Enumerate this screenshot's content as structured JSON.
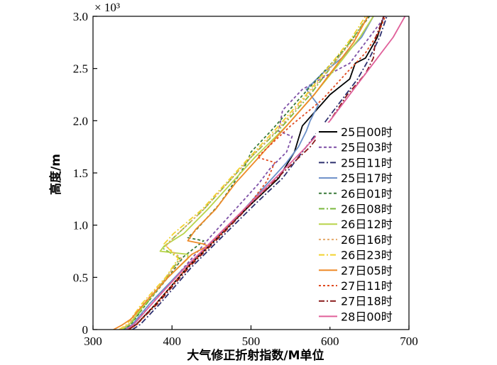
{
  "chart_data": {
    "type": "line",
    "title": "",
    "xlabel": "大气修正折射指数/M单位",
    "ylabel": "高度/m",
    "y_scale_label": "× 10³",
    "xlim": [
      300,
      700
    ],
    "ylim": [
      0,
      3000
    ],
    "xticks": [
      300,
      400,
      500,
      600,
      700
    ],
    "xtick_labels": [
      "300",
      "400",
      "500",
      "600",
      "700"
    ],
    "yticks": [
      0,
      500,
      1000,
      1500,
      2000,
      2500,
      3000
    ],
    "ytick_labels": [
      "0",
      "0.5",
      "1.0",
      "1.5",
      "2.0",
      "2.5",
      "3.0"
    ],
    "legend_position": "right",
    "grid": false,
    "series": [
      {
        "name": "25日00时",
        "color": "#000000",
        "dash": "solid",
        "points": [
          [
            345,
            0
          ],
          [
            355,
            50
          ],
          [
            380,
            250
          ],
          [
            420,
            600
          ],
          [
            460,
            900
          ],
          [
            500,
            1200
          ],
          [
            535,
            1450
          ],
          [
            555,
            1700
          ],
          [
            565,
            1950
          ],
          [
            600,
            2250
          ],
          [
            625,
            2400
          ],
          [
            632,
            2550
          ],
          [
            645,
            2600
          ],
          [
            660,
            2800
          ],
          [
            668,
            3000
          ]
        ]
      },
      {
        "name": "25日03时",
        "color": "#7d4fa6",
        "dash": "4,3",
        "points": [
          [
            343,
            0
          ],
          [
            352,
            60
          ],
          [
            375,
            250
          ],
          [
            410,
            550
          ],
          [
            450,
            900
          ],
          [
            480,
            1150
          ],
          [
            510,
            1400
          ],
          [
            525,
            1550
          ],
          [
            545,
            1700
          ],
          [
            552,
            1850
          ],
          [
            535,
            1900
          ],
          [
            540,
            2100
          ],
          [
            565,
            2300
          ],
          [
            600,
            2450
          ],
          [
            625,
            2550
          ],
          [
            640,
            2700
          ],
          [
            660,
            2900
          ],
          [
            670,
            3000
          ]
        ]
      },
      {
        "name": "25日11时",
        "color": "#2c2f6e",
        "dash": "8,3,2,3",
        "points": [
          [
            350,
            0
          ],
          [
            360,
            50
          ],
          [
            385,
            250
          ],
          [
            425,
            600
          ],
          [
            465,
            900
          ],
          [
            505,
            1200
          ],
          [
            540,
            1450
          ],
          [
            565,
            1700
          ],
          [
            590,
            1950
          ],
          [
            615,
            2200
          ],
          [
            635,
            2400
          ],
          [
            650,
            2600
          ],
          [
            663,
            2800
          ],
          [
            672,
            3000
          ]
        ]
      },
      {
        "name": "25日17时",
        "color": "#6b8fc8",
        "dash": "solid",
        "points": [
          [
            340,
            0
          ],
          [
            350,
            50
          ],
          [
            372,
            250
          ],
          [
            410,
            550
          ],
          [
            445,
            800
          ],
          [
            485,
            1100
          ],
          [
            515,
            1350
          ],
          [
            545,
            1600
          ],
          [
            560,
            1750
          ],
          [
            570,
            1900
          ],
          [
            575,
            2000
          ],
          [
            585,
            2150
          ],
          [
            570,
            2300
          ],
          [
            590,
            2450
          ],
          [
            615,
            2600
          ],
          [
            640,
            2800
          ],
          [
            655,
            3000
          ]
        ]
      },
      {
        "name": "26日01时",
        "color": "#3a7a3a",
        "dash": "4,3",
        "points": [
          [
            338,
            0
          ],
          [
            348,
            50
          ],
          [
            368,
            250
          ],
          [
            395,
            500
          ],
          [
            415,
            700
          ],
          [
            440,
            850
          ],
          [
            420,
            880
          ],
          [
            430,
            950
          ],
          [
            460,
            1200
          ],
          [
            478,
            1400
          ],
          [
            495,
            1600
          ],
          [
            500,
            1700
          ],
          [
            525,
            1900
          ],
          [
            560,
            2200
          ],
          [
            590,
            2450
          ],
          [
            620,
            2700
          ],
          [
            650,
            3000
          ]
        ]
      },
      {
        "name": "26日08时",
        "color": "#7ab83c",
        "dash": "8,3,2,3",
        "points": [
          [
            337,
            0
          ],
          [
            347,
            50
          ],
          [
            368,
            250
          ],
          [
            393,
            500
          ],
          [
            410,
            680
          ],
          [
            388,
            780
          ],
          [
            405,
            900
          ],
          [
            440,
            1150
          ],
          [
            470,
            1400
          ],
          [
            500,
            1650
          ],
          [
            540,
            1950
          ],
          [
            575,
            2250
          ],
          [
            605,
            2550
          ],
          [
            630,
            2800
          ],
          [
            648,
            3000
          ]
        ]
      },
      {
        "name": "26日12时",
        "color": "#b8d44a",
        "dash": "solid",
        "points": [
          [
            336,
            0
          ],
          [
            346,
            50
          ],
          [
            366,
            250
          ],
          [
            395,
            500
          ],
          [
            420,
            680
          ],
          [
            420,
            720
          ],
          [
            385,
            750
          ],
          [
            390,
            800
          ],
          [
            415,
            920
          ],
          [
            445,
            1150
          ],
          [
            475,
            1400
          ],
          [
            505,
            1650
          ],
          [
            545,
            1950
          ],
          [
            580,
            2250
          ],
          [
            612,
            2550
          ],
          [
            638,
            2800
          ],
          [
            655,
            3000
          ]
        ]
      },
      {
        "name": "26日16时",
        "color": "#e4a96a",
        "dash": "3,3",
        "points": [
          [
            335,
            0
          ],
          [
            345,
            50
          ],
          [
            364,
            250
          ],
          [
            393,
            500
          ],
          [
            412,
            680
          ],
          [
            392,
            800
          ],
          [
            405,
            900
          ],
          [
            440,
            1150
          ],
          [
            470,
            1400
          ],
          [
            500,
            1650
          ],
          [
            538,
            1950
          ],
          [
            572,
            2250
          ],
          [
            605,
            2550
          ],
          [
            632,
            2800
          ],
          [
            648,
            3000
          ]
        ]
      },
      {
        "name": "26日23时",
        "color": "#f2d22e",
        "dash": "8,3,2,3",
        "points": [
          [
            333,
            0
          ],
          [
            343,
            50
          ],
          [
            362,
            250
          ],
          [
            392,
            500
          ],
          [
            408,
            680
          ],
          [
            390,
            820
          ],
          [
            402,
            920
          ],
          [
            438,
            1150
          ],
          [
            468,
            1400
          ],
          [
            498,
            1650
          ],
          [
            535,
            1950
          ],
          [
            570,
            2250
          ],
          [
            602,
            2550
          ],
          [
            628,
            2800
          ],
          [
            645,
            3000
          ]
        ]
      },
      {
        "name": "27日05时",
        "color": "#ee8a28",
        "dash": "solid",
        "points": [
          [
            326,
            0
          ],
          [
            336,
            40
          ],
          [
            348,
            100
          ],
          [
            365,
            250
          ],
          [
            395,
            500
          ],
          [
            425,
            720
          ],
          [
            445,
            800
          ],
          [
            440,
            820
          ],
          [
            420,
            850
          ],
          [
            430,
            960
          ],
          [
            455,
            1150
          ],
          [
            480,
            1400
          ],
          [
            510,
            1650
          ],
          [
            545,
            1950
          ],
          [
            580,
            2250
          ],
          [
            605,
            2500
          ],
          [
            630,
            2750
          ],
          [
            648,
            3000
          ]
        ]
      },
      {
        "name": "27日11时",
        "color": "#e04a20",
        "dash": "3,3",
        "points": [
          [
            346,
            0
          ],
          [
            356,
            50
          ],
          [
            380,
            250
          ],
          [
            420,
            600
          ],
          [
            460,
            900
          ],
          [
            498,
            1200
          ],
          [
            520,
            1420
          ],
          [
            530,
            1600
          ],
          [
            508,
            1650
          ],
          [
            522,
            1750
          ],
          [
            550,
            1950
          ],
          [
            590,
            2200
          ],
          [
            620,
            2450
          ],
          [
            645,
            2650
          ],
          [
            662,
            2850
          ],
          [
            670,
            3000
          ]
        ]
      },
      {
        "name": "27日18时",
        "color": "#8a1a1a",
        "dash": "8,3,2,3",
        "points": [
          [
            345,
            0
          ],
          [
            355,
            50
          ],
          [
            382,
            250
          ],
          [
            422,
            600
          ],
          [
            462,
            900
          ],
          [
            500,
            1200
          ],
          [
            540,
            1500
          ],
          [
            575,
            1750
          ],
          [
            600,
            2000
          ],
          [
            622,
            2250
          ],
          [
            645,
            2450
          ],
          [
            655,
            2600
          ],
          [
            658,
            2800
          ],
          [
            668,
            3000
          ]
        ]
      },
      {
        "name": "28日00时",
        "color": "#e0609a",
        "dash": "solid",
        "points": [
          [
            342,
            0
          ],
          [
            352,
            50
          ],
          [
            375,
            250
          ],
          [
            415,
            580
          ],
          [
            455,
            880
          ],
          [
            495,
            1180
          ],
          [
            535,
            1480
          ],
          [
            570,
            1750
          ],
          [
            600,
            2000
          ],
          [
            630,
            2300
          ],
          [
            660,
            2600
          ],
          [
            680,
            2800
          ],
          [
            695,
            3000
          ]
        ]
      }
    ]
  }
}
